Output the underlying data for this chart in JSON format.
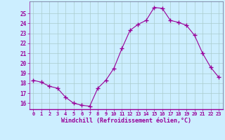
{
  "x": [
    0,
    1,
    2,
    3,
    4,
    5,
    6,
    7,
    8,
    9,
    10,
    11,
    12,
    13,
    14,
    15,
    16,
    17,
    18,
    19,
    20,
    21,
    22,
    23
  ],
  "y": [
    18.3,
    18.1,
    17.7,
    17.5,
    16.6,
    16.0,
    15.8,
    15.7,
    17.5,
    18.3,
    19.5,
    21.5,
    23.3,
    23.9,
    24.3,
    25.6,
    25.5,
    24.3,
    24.1,
    23.8,
    22.8,
    21.0,
    19.6,
    18.6
  ],
  "line_color": "#990099",
  "marker": "D",
  "marker_size": 2.2,
  "bg_color": "#cceeff",
  "grid_color": "#aacccc",
  "xlabel": "Windchill (Refroidissement éolien,°C)",
  "xlabel_color": "#990099",
  "tick_color": "#990099",
  "ylabel_ticks": [
    16,
    17,
    18,
    19,
    20,
    21,
    22,
    23,
    24,
    25
  ],
  "xlim": [
    -0.5,
    23.5
  ],
  "ylim": [
    15.4,
    26.2
  ]
}
